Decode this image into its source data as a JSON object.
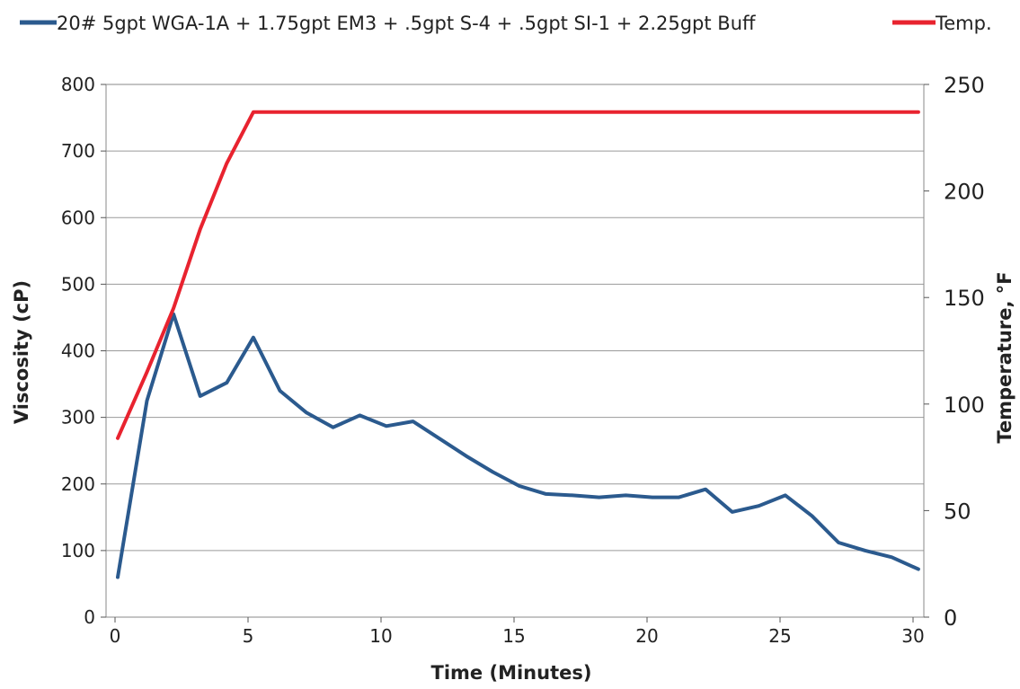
{
  "chart_data": {
    "type": "line",
    "title": "",
    "xlabel": "Time (Minutes)",
    "ylabel": "Viscosity (cP)",
    "y2label": "Temperature, °F",
    "xlim": [
      0,
      30
    ],
    "ylim": [
      0,
      800
    ],
    "y2lim": [
      0,
      250
    ],
    "x_ticks": [
      0,
      5,
      10,
      15,
      20,
      25,
      30
    ],
    "y_ticks": [
      0,
      100,
      200,
      300,
      400,
      500,
      600,
      700,
      800
    ],
    "y2_ticks": [
      0,
      50,
      100,
      150,
      200,
      250
    ],
    "grid": "horizontal",
    "legend_position": "top",
    "series": [
      {
        "name": "20# 5gpt WGA-1A + 1.75gpt EM3 + .5gpt S-4 + .5gpt SI-1 + 2.25gpt Buff",
        "axis": "left",
        "color": "#2b5a8e",
        "x": [
          0.1,
          1.2,
          2.2,
          3.2,
          4.2,
          5.2,
          6.2,
          7.2,
          8.2,
          9.2,
          10.2,
          11.2,
          12.2,
          13.2,
          14.2,
          15.2,
          16.2,
          17.2,
          18.2,
          19.2,
          20.2,
          21.2,
          22.2,
          23.2,
          24.2,
          25.2,
          26.2,
          27.2,
          28.2,
          29.2,
          30.2
        ],
        "values": [
          60,
          325,
          455,
          332,
          352,
          420,
          340,
          307,
          285,
          303,
          287,
          294,
          268,
          242,
          218,
          197,
          185,
          183,
          180,
          183,
          180,
          180,
          192,
          158,
          167,
          183,
          152,
          112,
          100,
          90,
          72
        ]
      },
      {
        "name": "Temp.",
        "axis": "right",
        "color": "#e8232f",
        "x": [
          0.1,
          1.2,
          2.2,
          3.2,
          4.2,
          5.2,
          30.2
        ],
        "values": [
          84,
          115,
          145,
          182,
          213,
          237,
          237
        ]
      }
    ]
  }
}
